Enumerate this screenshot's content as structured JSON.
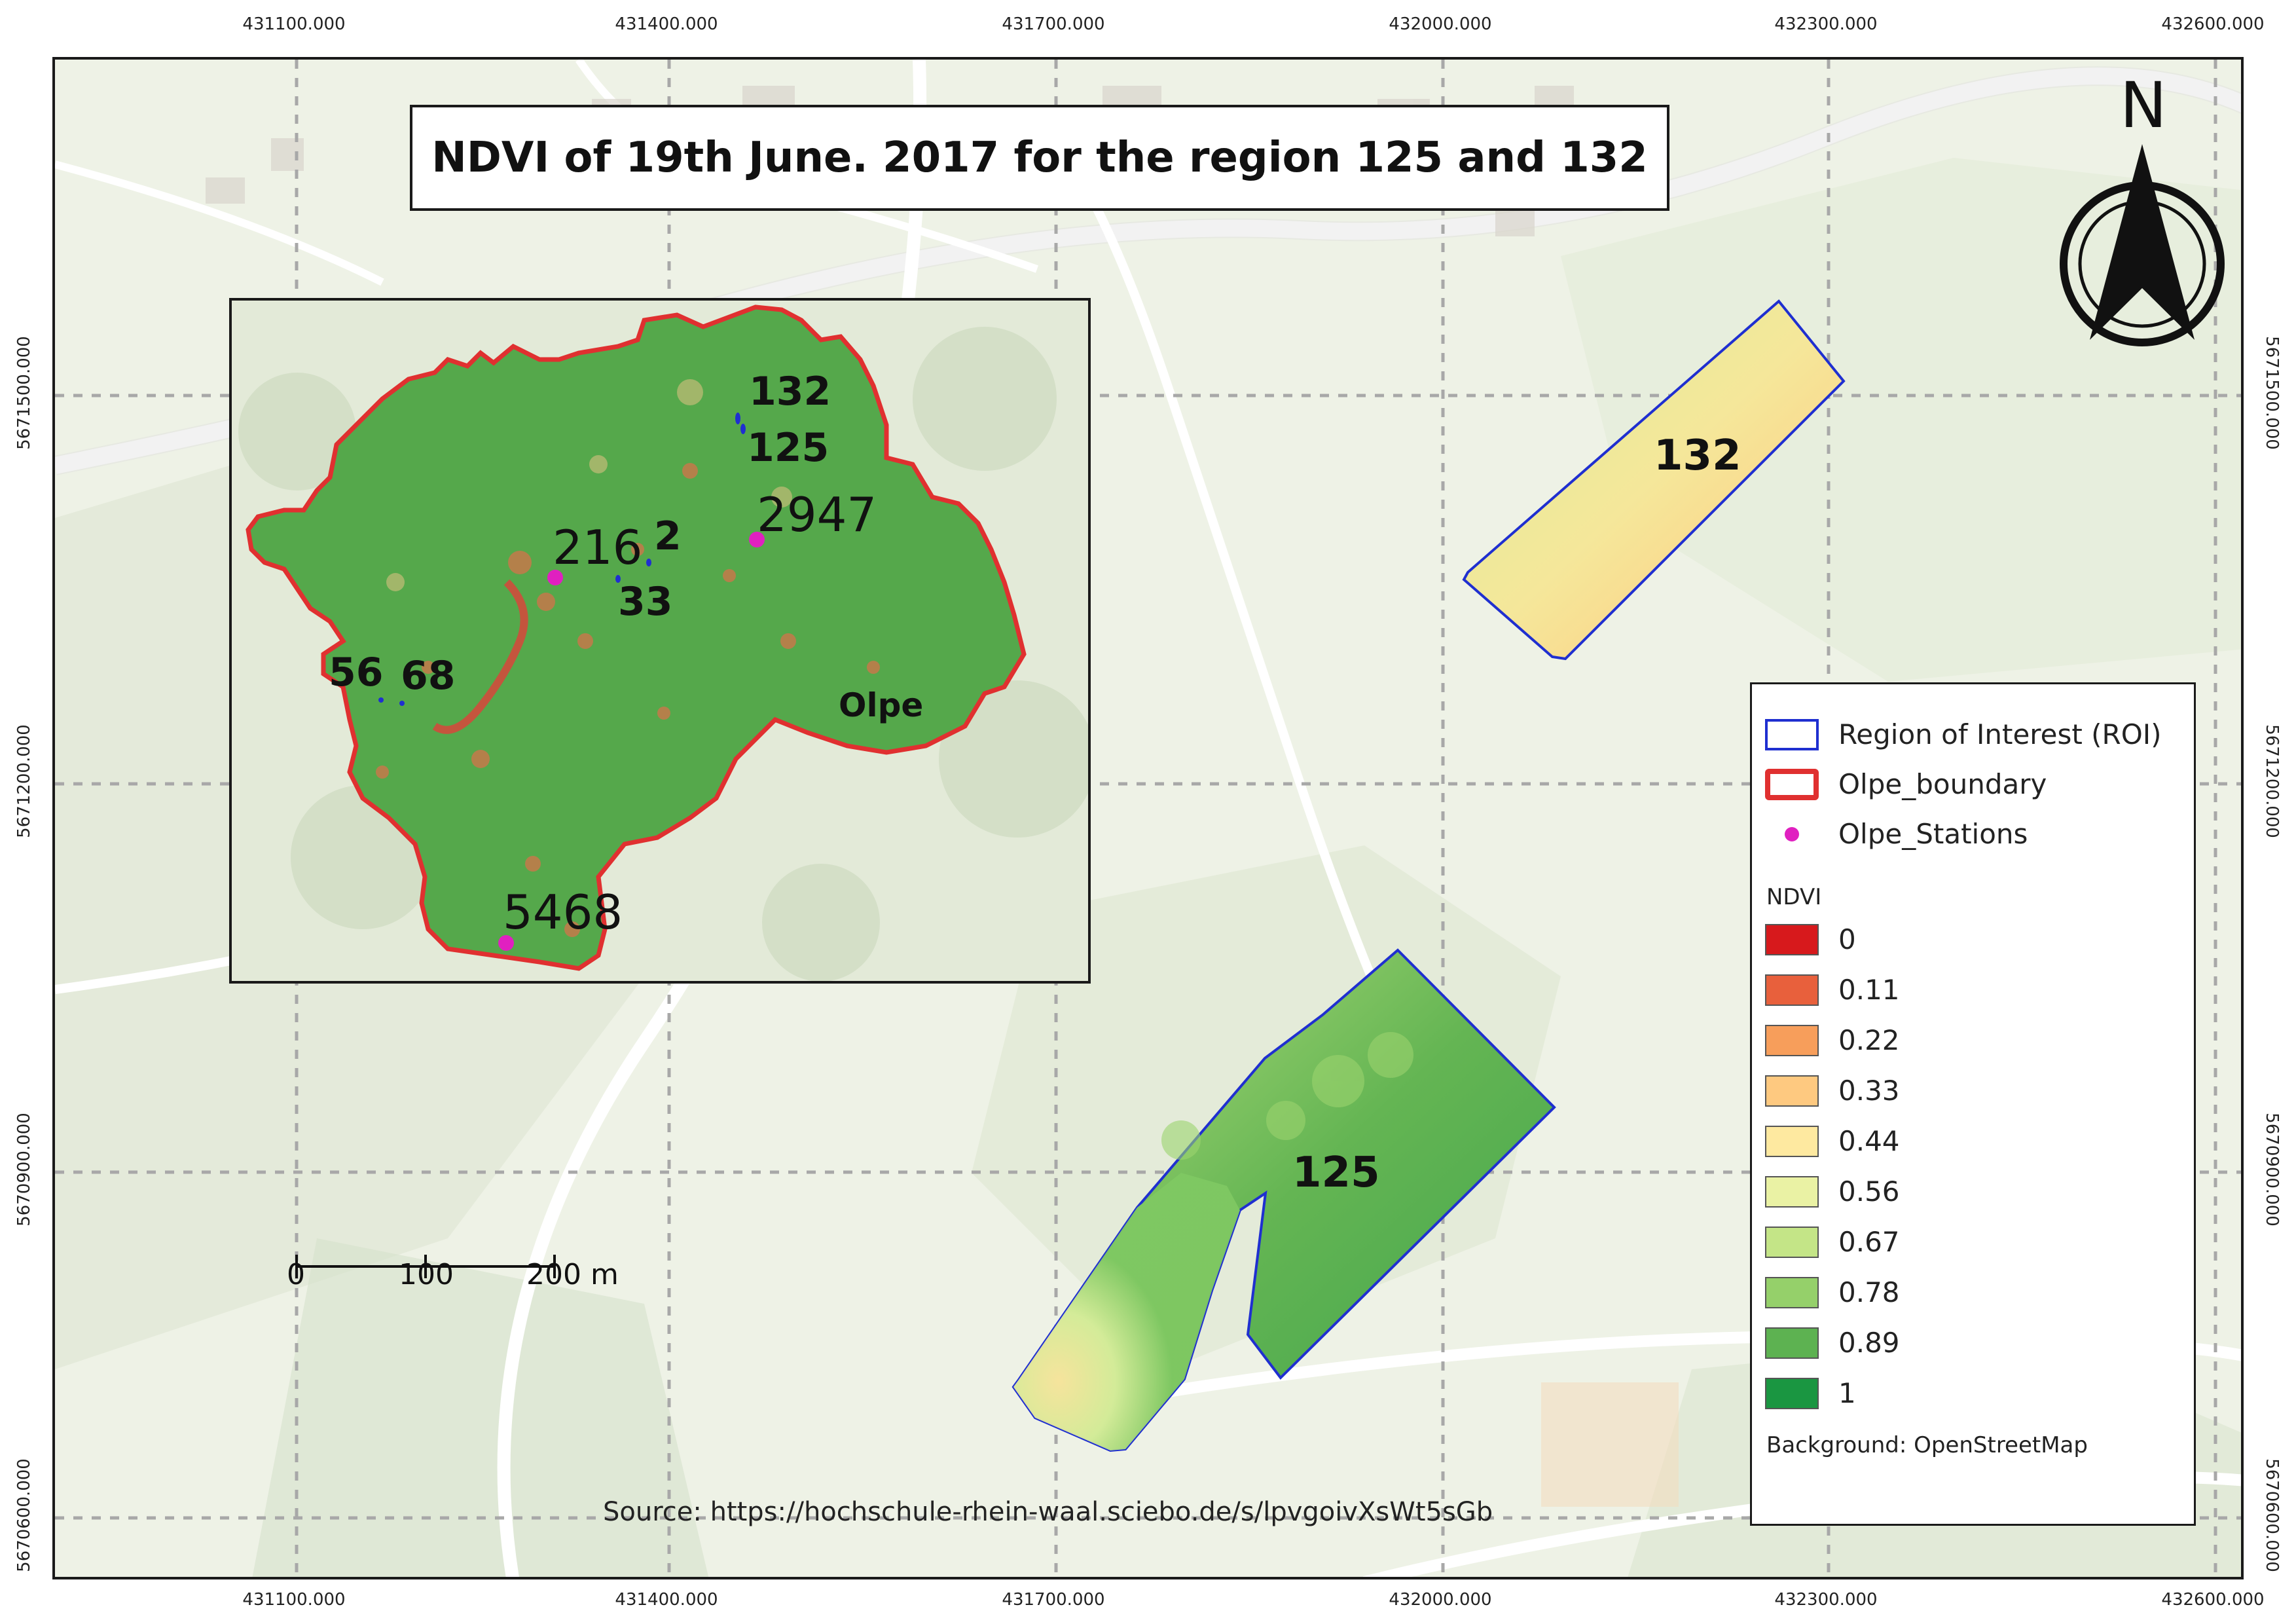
{
  "title": "NDVI of 19th June. 2017 for the region 125 and 132",
  "x_ticks": [
    "431100.000",
    "431400.000",
    "431700.000",
    "432000.000",
    "432300.000",
    "432600.000"
  ],
  "y_ticks": [
    "5671500.000",
    "5671200.000",
    "5670900.000",
    "5670600.000"
  ],
  "inset": {
    "region_labels": [
      "132",
      "125",
      "2",
      "33",
      "56",
      "68"
    ],
    "station_labels": [
      "2947",
      "216",
      "5468"
    ],
    "district_label": "Olpe"
  },
  "main_map": {
    "roi_labels": [
      "132",
      "125"
    ]
  },
  "north_arrow": {
    "label": "N",
    "icon": "north-arrow-icon"
  },
  "scale_bar": {
    "labels": [
      "0",
      "100",
      "200 m"
    ]
  },
  "legend": {
    "items": [
      {
        "label": "Region of Interest (ROI)",
        "color": "#1f2fd0"
      },
      {
        "label": "Olpe_boundary",
        "color": "#e03030"
      },
      {
        "label": "Olpe_Stations",
        "color": "#e020c0"
      }
    ],
    "ndvi_title": "NDVI",
    "ndvi_classes": [
      {
        "label": "0",
        "color": "#d7191c"
      },
      {
        "label": "0.11",
        "color": "#e8603c"
      },
      {
        "label": "0.22",
        "color": "#f79e5b"
      },
      {
        "label": "0.33",
        "color": "#fec980"
      },
      {
        "label": "0.44",
        "color": "#fee9a0"
      },
      {
        "label": "0.56",
        "color": "#eaf2a4"
      },
      {
        "label": "0.67",
        "color": "#c4e587"
      },
      {
        "label": "0.78",
        "color": "#95d06a"
      },
      {
        "label": "0.89",
        "color": "#5db251"
      },
      {
        "label": "1",
        "color": "#1a9641"
      }
    ],
    "background_note": "Background: OpenStreetMap"
  },
  "source": "Source: https://hochschule-rhein-waal.sciebo.de/s/lpvgoivXsWt5sGb"
}
